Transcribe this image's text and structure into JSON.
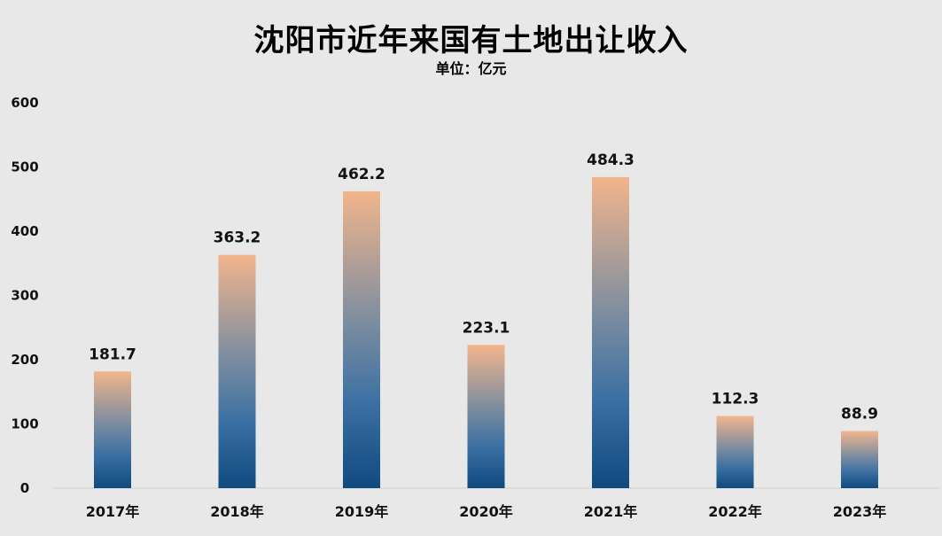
{
  "chart_data": {
    "type": "bar",
    "title": "沈阳市近年来国有土地出让收入",
    "subtitle": "单位：亿元",
    "categories": [
      "2017年",
      "2018年",
      "2019年",
      "2020年",
      "2021年",
      "2022年",
      "2023年"
    ],
    "values": [
      181.7,
      363.2,
      462.2,
      223.1,
      484.3,
      112.3,
      88.9
    ],
    "value_labels": [
      "181.7",
      "363.2",
      "462.2",
      "223.1",
      "484.3",
      "112.3",
      "88.9"
    ],
    "yticks": [
      "0",
      "100",
      "200",
      "300",
      "400",
      "500",
      "600"
    ],
    "ylim": [
      0,
      600
    ],
    "grid": false,
    "legend": "none",
    "colors": {
      "bar_top": "#f2b58c",
      "bar_mid": "#7a8ca0",
      "bar_bottom": "#0f4a7e",
      "background": "#e8e8e8"
    }
  }
}
